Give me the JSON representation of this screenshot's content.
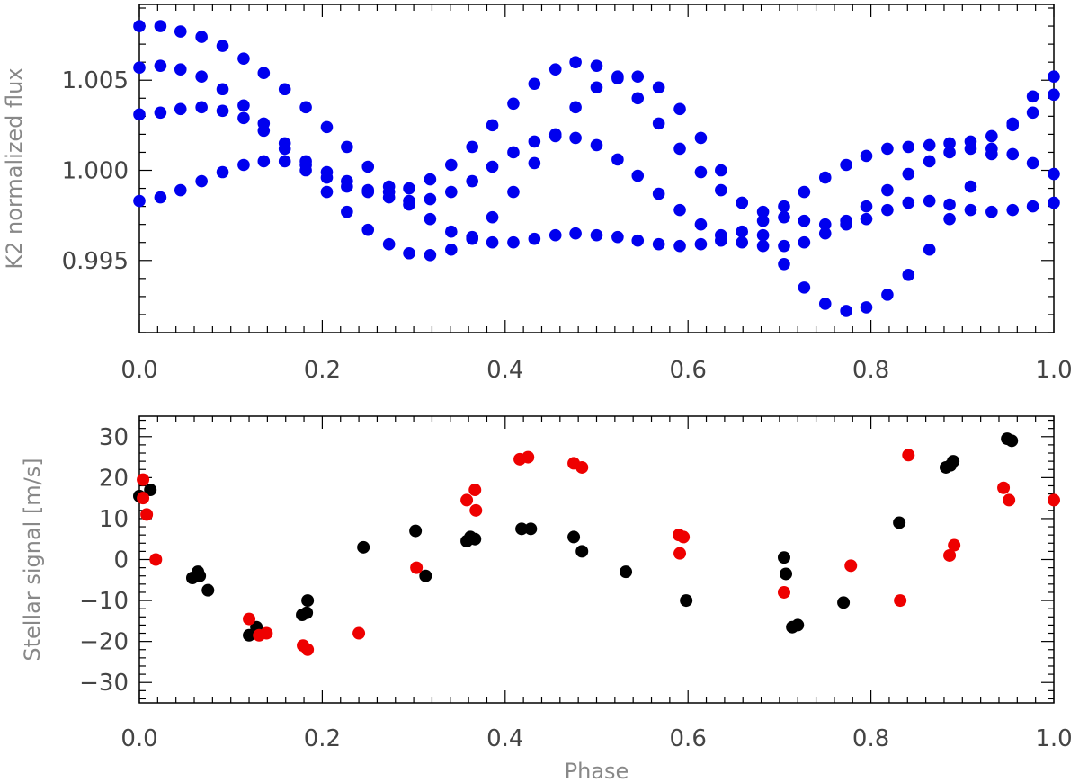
{
  "chart_data": [
    {
      "type": "scatter",
      "title": "",
      "xlabel": "",
      "ylabel": "K2 normalized flux",
      "xlim": [
        0.0,
        1.0
      ],
      "ylim": [
        0.991,
        1.0092
      ],
      "x_ticks": [
        {
          "value": 0.0,
          "label": "0.0"
        },
        {
          "value": 0.2,
          "label": "0.2"
        },
        {
          "value": 0.4,
          "label": "0.4"
        },
        {
          "value": 0.6,
          "label": "0.6"
        },
        {
          "value": 0.8,
          "label": "0.8"
        },
        {
          "value": 1.0,
          "label": "1.0"
        }
      ],
      "y_ticks": [
        {
          "value": 0.995,
          "label": "0.995"
        },
        {
          "value": 1.0,
          "label": "1.000"
        },
        {
          "value": 1.005,
          "label": "1.005"
        }
      ],
      "series": [
        {
          "name": "K2 light curve",
          "color": "#0000ee",
          "points": [
            [
              0.0,
              1.008
            ],
            [
              0.023,
              1.008
            ],
            [
              0.045,
              1.0077
            ],
            [
              0.068,
              1.0074
            ],
            [
              0.091,
              1.0069
            ],
            [
              0.114,
              1.0062
            ],
            [
              0.136,
              1.0054
            ],
            [
              0.159,
              1.0045
            ],
            [
              0.182,
              1.0035
            ],
            [
              0.205,
              1.0024
            ],
            [
              0.227,
              1.0013
            ],
            [
              0.25,
              1.0002
            ],
            [
              0.273,
              0.9991
            ],
            [
              0.295,
              0.9981
            ],
            [
              0.318,
              0.9973
            ],
            [
              0.341,
              0.9966
            ],
            [
              0.364,
              0.9962
            ],
            [
              0.386,
              0.996
            ],
            [
              0.409,
              0.996
            ],
            [
              0.432,
              0.9962
            ],
            [
              0.455,
              0.9964
            ],
            [
              0.477,
              0.9965
            ],
            [
              0.5,
              0.9964
            ],
            [
              0.523,
              0.9963
            ],
            [
              0.545,
              0.9961
            ],
            [
              0.568,
              0.9959
            ],
            [
              0.591,
              0.9958
            ],
            [
              0.614,
              0.9959
            ],
            [
              0.636,
              0.9961
            ],
            [
              0.659,
              0.9966
            ],
            [
              0.682,
              0.9972
            ],
            [
              0.705,
              0.998
            ],
            [
              0.727,
              0.9988
            ],
            [
              0.75,
              0.9996
            ],
            [
              0.773,
              1.0003
            ],
            [
              0.795,
              1.0008
            ],
            [
              0.818,
              1.0012
            ],
            [
              0.841,
              1.0013
            ],
            [
              0.864,
              1.0014
            ],
            [
              0.886,
              1.0015
            ],
            [
              0.909,
              1.0016
            ],
            [
              0.932,
              1.0019
            ],
            [
              0.955,
              1.0025
            ],
            [
              0.977,
              1.0032
            ],
            [
              1.0,
              1.0042
            ],
            [
              0.0,
              1.0057
            ],
            [
              0.023,
              1.0058
            ],
            [
              0.045,
              1.0056
            ],
            [
              0.068,
              1.0052
            ],
            [
              0.091,
              1.0045
            ],
            [
              0.114,
              1.0036
            ],
            [
              0.136,
              1.0026
            ],
            [
              0.159,
              1.0015
            ],
            [
              0.182,
              1.0005
            ],
            [
              0.205,
              0.9996
            ],
            [
              0.227,
              0.9991
            ],
            [
              0.25,
              0.9988
            ],
            [
              0.273,
              0.9988
            ],
            [
              0.295,
              0.999
            ],
            [
              0.318,
              0.9995
            ],
            [
              0.341,
              1.0003
            ],
            [
              0.364,
              1.0013
            ],
            [
              0.386,
              1.0025
            ],
            [
              0.409,
              1.0037
            ],
            [
              0.432,
              1.0048
            ],
            [
              0.455,
              1.0056
            ],
            [
              0.477,
              1.006
            ],
            [
              0.5,
              1.0058
            ],
            [
              0.523,
              1.0051
            ],
            [
              0.545,
              1.004
            ],
            [
              0.568,
              1.0026
            ],
            [
              0.591,
              1.0012
            ],
            [
              0.614,
              0.9999
            ],
            [
              0.636,
              0.9989
            ],
            [
              0.659,
              0.9982
            ],
            [
              0.682,
              0.9977
            ],
            [
              0.705,
              0.9974
            ],
            [
              0.727,
              0.9972
            ],
            [
              0.75,
              0.997
            ],
            [
              0.773,
              0.997
            ],
            [
              0.795,
              0.9973
            ],
            [
              0.818,
              0.9978
            ],
            [
              0.841,
              0.9982
            ],
            [
              0.864,
              0.9983
            ],
            [
              0.886,
              0.9981
            ],
            [
              0.909,
              0.9978
            ],
            [
              0.932,
              0.9977
            ],
            [
              0.955,
              0.9978
            ],
            [
              0.977,
              0.998
            ],
            [
              1.0,
              0.9982
            ],
            [
              0.0,
              1.0031
            ],
            [
              0.023,
              1.0032
            ],
            [
              0.045,
              1.0034
            ],
            [
              0.068,
              1.0035
            ],
            [
              0.091,
              1.0033
            ],
            [
              0.114,
              1.0029
            ],
            [
              0.136,
              1.0022
            ],
            [
              0.159,
              1.0012
            ],
            [
              0.182,
              1.0
            ],
            [
              0.205,
              0.9988
            ],
            [
              0.227,
              0.9977
            ],
            [
              0.25,
              0.9967
            ],
            [
              0.273,
              0.9959
            ],
            [
              0.295,
              0.9954
            ],
            [
              0.318,
              0.9953
            ],
            [
              0.341,
              0.9956
            ],
            [
              0.364,
              0.9963
            ],
            [
              0.386,
              0.9974
            ],
            [
              0.409,
              0.9988
            ],
            [
              0.432,
              1.0004
            ],
            [
              0.455,
              1.002
            ],
            [
              0.477,
              1.0035
            ],
            [
              0.5,
              1.0046
            ],
            [
              0.523,
              1.0052
            ],
            [
              0.545,
              1.0052
            ],
            [
              0.568,
              1.0046
            ],
            [
              0.591,
              1.0034
            ],
            [
              0.614,
              1.0018
            ],
            [
              0.636,
              1.0
            ],
            [
              0.659,
              0.9982
            ],
            [
              0.682,
              0.9964
            ],
            [
              0.705,
              0.9948
            ],
            [
              0.727,
              0.9935
            ],
            [
              0.75,
              0.9926
            ],
            [
              0.773,
              0.9922
            ],
            [
              0.795,
              0.9924
            ],
            [
              0.818,
              0.9931
            ],
            [
              0.841,
              0.9942
            ],
            [
              0.864,
              0.9956
            ],
            [
              0.886,
              0.9973
            ],
            [
              0.909,
              0.9991
            ],
            [
              0.932,
              1.0009
            ],
            [
              0.955,
              1.0026
            ],
            [
              0.977,
              1.0041
            ],
            [
              1.0,
              1.0052
            ],
            [
              0.0,
              0.9983
            ],
            [
              0.023,
              0.9985
            ],
            [
              0.045,
              0.9989
            ],
            [
              0.068,
              0.9994
            ],
            [
              0.091,
              0.9999
            ],
            [
              0.114,
              1.0003
            ],
            [
              0.136,
              1.0005
            ],
            [
              0.159,
              1.0005
            ],
            [
              0.182,
              1.0003
            ],
            [
              0.205,
              0.9999
            ],
            [
              0.227,
              0.9994
            ],
            [
              0.25,
              0.9989
            ],
            [
              0.273,
              0.9985
            ],
            [
              0.295,
              0.9983
            ],
            [
              0.318,
              0.9984
            ],
            [
              0.341,
              0.9988
            ],
            [
              0.364,
              0.9994
            ],
            [
              0.386,
              1.0002
            ],
            [
              0.409,
              1.001
            ],
            [
              0.432,
              1.0016
            ],
            [
              0.455,
              1.0019
            ],
            [
              0.477,
              1.0018
            ],
            [
              0.5,
              1.0014
            ],
            [
              0.523,
              1.0006
            ],
            [
              0.545,
              0.9997
            ],
            [
              0.568,
              0.9987
            ],
            [
              0.591,
              0.9978
            ],
            [
              0.614,
              0.997
            ],
            [
              0.636,
              0.9964
            ],
            [
              0.659,
              0.996
            ],
            [
              0.682,
              0.9958
            ],
            [
              0.705,
              0.9958
            ],
            [
              0.727,
              0.996
            ],
            [
              0.75,
              0.9965
            ],
            [
              0.773,
              0.9972
            ],
            [
              0.795,
              0.998
            ],
            [
              0.818,
              0.9989
            ],
            [
              0.841,
              0.9998
            ],
            [
              0.864,
              1.0005
            ],
            [
              0.886,
              1.001
            ],
            [
              0.909,
              1.0012
            ],
            [
              0.932,
              1.0012
            ],
            [
              0.955,
              1.0009
            ],
            [
              0.977,
              1.0004
            ],
            [
              1.0,
              0.9998
            ]
          ]
        }
      ]
    },
    {
      "type": "scatter",
      "title": "",
      "xlabel": "Phase",
      "ylabel": "Stellar signal [m/s]",
      "xlim": [
        0.0,
        1.0
      ],
      "ylim": [
        -35,
        35
      ],
      "x_ticks": [
        {
          "value": 0.0,
          "label": "0.0"
        },
        {
          "value": 0.2,
          "label": "0.2"
        },
        {
          "value": 0.4,
          "label": "0.4"
        },
        {
          "value": 0.6,
          "label": "0.6"
        },
        {
          "value": 0.8,
          "label": "0.8"
        },
        {
          "value": 1.0,
          "label": "1.0"
        }
      ],
      "y_ticks": [
        {
          "value": -30,
          "label": "−30"
        },
        {
          "value": -20,
          "label": "−20"
        },
        {
          "value": -10,
          "label": "−10"
        },
        {
          "value": 0,
          "label": "0"
        },
        {
          "value": 10,
          "label": "10"
        },
        {
          "value": 20,
          "label": "20"
        },
        {
          "value": 30,
          "label": "30"
        }
      ],
      "series": [
        {
          "name": "black points",
          "color": "#000000",
          "points": [
            [
              0.0,
              15.5
            ],
            [
              0.012,
              17.0
            ],
            [
              0.058,
              -4.5
            ],
            [
              0.064,
              -3.0
            ],
            [
              0.066,
              -4.0
            ],
            [
              0.075,
              -7.5
            ],
            [
              0.12,
              -18.5
            ],
            [
              0.128,
              -16.5
            ],
            [
              0.178,
              -13.5
            ],
            [
              0.183,
              -13.0
            ],
            [
              0.184,
              -10.0
            ],
            [
              0.245,
              3.0
            ],
            [
              0.302,
              7.0
            ],
            [
              0.313,
              -4.0
            ],
            [
              0.358,
              4.5
            ],
            [
              0.362,
              5.5
            ],
            [
              0.367,
              5.0
            ],
            [
              0.418,
              7.5
            ],
            [
              0.428,
              7.5
            ],
            [
              0.475,
              5.5
            ],
            [
              0.484,
              2.0
            ],
            [
              0.532,
              -3.0
            ],
            [
              0.598,
              -10.0
            ],
            [
              0.705,
              0.5
            ],
            [
              0.707,
              -3.5
            ],
            [
              0.714,
              -16.5
            ],
            [
              0.72,
              -16.0
            ],
            [
              0.77,
              -10.5
            ],
            [
              0.831,
              9.0
            ],
            [
              0.882,
              22.5
            ],
            [
              0.887,
              23.0
            ],
            [
              0.89,
              24.0
            ],
            [
              0.949,
              29.5
            ],
            [
              0.954,
              29.0
            ]
          ]
        },
        {
          "name": "red points",
          "color": "#ee0000",
          "points": [
            [
              0.004,
              19.5
            ],
            [
              0.004,
              15.0
            ],
            [
              0.008,
              11.0
            ],
            [
              0.018,
              0.0
            ],
            [
              0.12,
              -14.5
            ],
            [
              0.131,
              -18.5
            ],
            [
              0.139,
              -18.0
            ],
            [
              0.179,
              -21.0
            ],
            [
              0.184,
              -22.0
            ],
            [
              0.24,
              -18.0
            ],
            [
              0.303,
              -2.0
            ],
            [
              0.358,
              14.5
            ],
            [
              0.367,
              17.0
            ],
            [
              0.368,
              12.0
            ],
            [
              0.416,
              24.5
            ],
            [
              0.425,
              25.0
            ],
            [
              0.475,
              23.5
            ],
            [
              0.484,
              22.5
            ],
            [
              0.59,
              6.0
            ],
            [
              0.591,
              1.5
            ],
            [
              0.595,
              5.5
            ],
            [
              0.705,
              -8.0
            ],
            [
              0.778,
              -1.5
            ],
            [
              0.832,
              -10.0
            ],
            [
              0.841,
              25.5
            ],
            [
              0.886,
              1.0
            ],
            [
              0.891,
              3.5
            ],
            [
              0.945,
              17.5
            ],
            [
              0.951,
              14.5
            ],
            [
              1.0,
              14.5
            ]
          ]
        }
      ]
    }
  ]
}
